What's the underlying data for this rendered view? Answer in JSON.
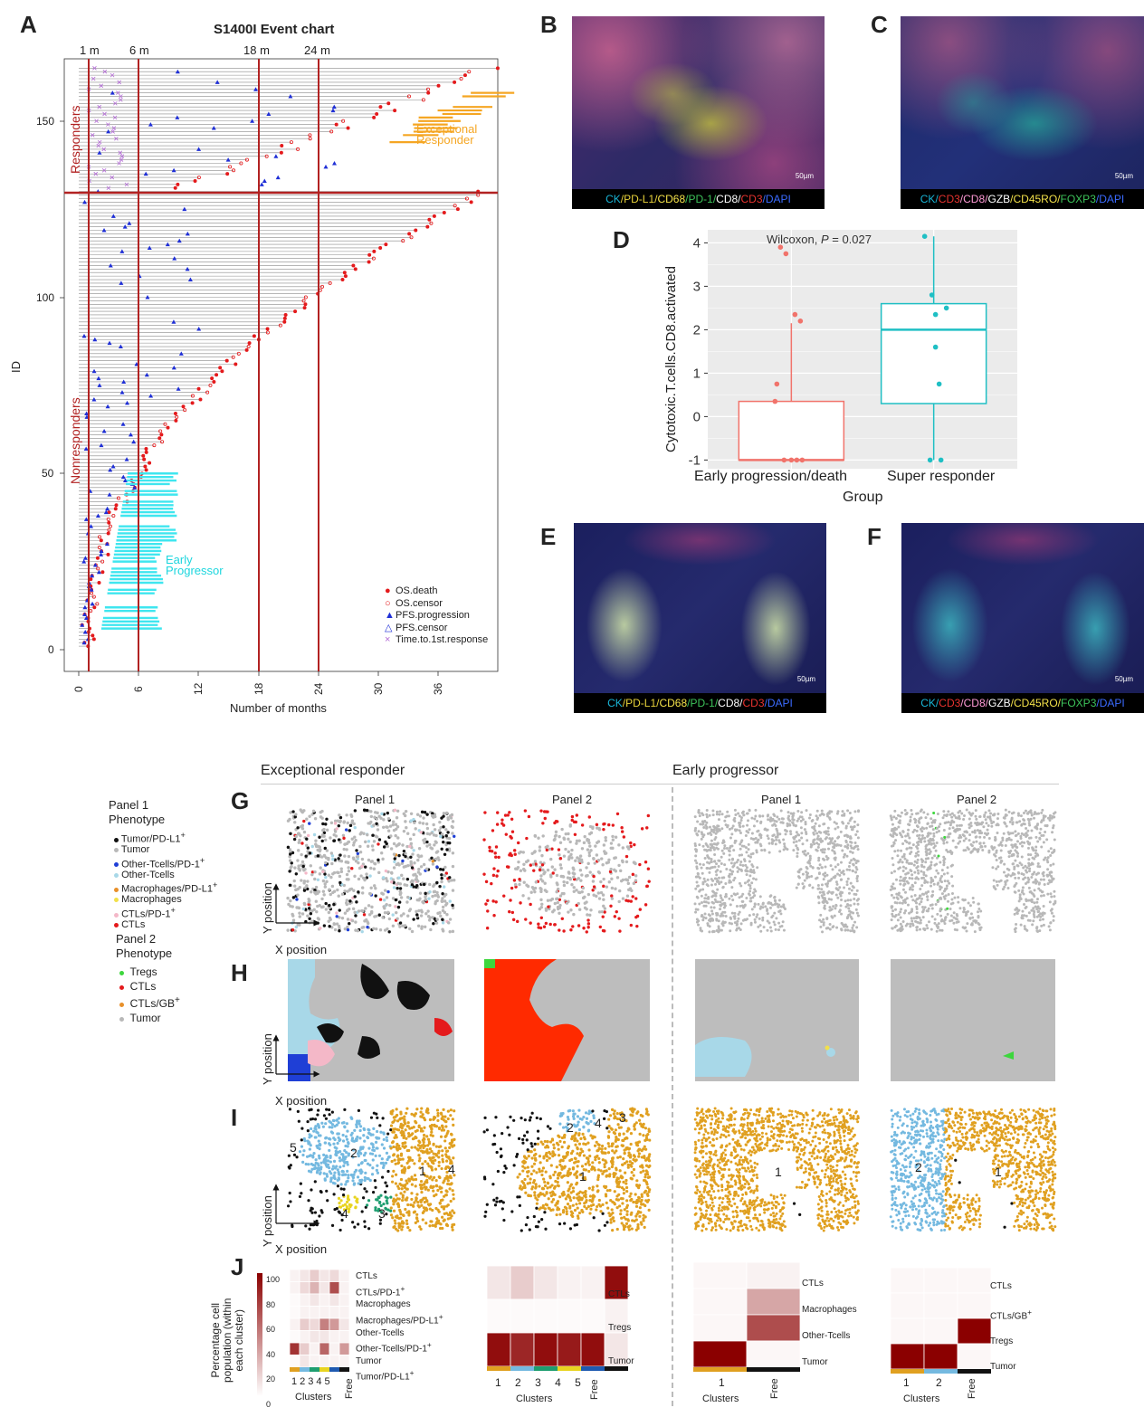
{
  "panel_letters": {
    "A": "A",
    "B": "B",
    "C": "C",
    "D": "D",
    "E": "E",
    "F": "F",
    "G": "G",
    "H": "H",
    "I": "I",
    "J": "J"
  },
  "panelA": {
    "title": "S1400I Event chart",
    "xlabel": "Number of months",
    "ylabel": "ID",
    "vlines": [
      "1 m",
      "6 m",
      "18 m",
      "24 m"
    ],
    "xticks": [
      "0",
      "6",
      "12",
      "18",
      "24",
      "30",
      "36"
    ],
    "yticks": [
      "0",
      "50",
      "100",
      "150"
    ],
    "group_labels": {
      "responders": "Responders",
      "nonresponders": "Nonresponders"
    },
    "annotations": {
      "exceptional_1": "Exceptional",
      "exceptional_2": "Responder",
      "early_1": "Early",
      "early_2": "Progressor"
    },
    "legend": [
      {
        "label": "OS.death",
        "color": "#e41a1c",
        "shape": "dot"
      },
      {
        "label": "OS.censor",
        "color": "#e41a1c",
        "shape": "circle"
      },
      {
        "label": "PFS.progression",
        "color": "#1f2fd6",
        "shape": "triangle"
      },
      {
        "label": "PFS.censor",
        "color": "#1f2fd6",
        "shape": "triangle-open"
      },
      {
        "label": "Time.to.1st.response",
        "color": "#b36bd6",
        "shape": "cross"
      }
    ]
  },
  "panelB": {
    "caption": [
      [
        "CK",
        "#19b5d6"
      ],
      [
        "/PD-L1/",
        "#e8d23a"
      ],
      [
        "CD68",
        "#f4e24a"
      ],
      [
        "/PD-1/",
        "#3dc35a"
      ],
      [
        "CD8/",
        "#ffffff"
      ],
      [
        "CD3",
        "#e8332f"
      ],
      [
        "/DAPI",
        "#3b6bff"
      ]
    ],
    "scalebar": "50µm"
  },
  "panelC": {
    "caption": [
      [
        "CK/",
        "#19b5d6"
      ],
      [
        "CD3",
        "#e8332f"
      ],
      [
        "/CD8/",
        "#ff9ad6"
      ],
      [
        "GZB",
        "#ffffff"
      ],
      [
        "/CD45RO/",
        "#f4e24a"
      ],
      [
        "FOXP3",
        "#3dc35a"
      ],
      [
        "/DAPI",
        "#3b6bff"
      ]
    ],
    "scalebar": "50µm"
  },
  "panelE": {
    "caption": [
      [
        "CK",
        "#19b5d6"
      ],
      [
        "/PD-L1/",
        "#e8d23a"
      ],
      [
        "CD68",
        "#f4e24a"
      ],
      [
        "/PD-1/",
        "#3dc35a"
      ],
      [
        "CD8/",
        "#ffffff"
      ],
      [
        "CD3",
        "#e8332f"
      ],
      [
        "/DAPI",
        "#3b6bff"
      ]
    ],
    "scalebar": "50µm"
  },
  "panelF": {
    "caption": [
      [
        "CK/",
        "#19b5d6"
      ],
      [
        "CD3",
        "#e8332f"
      ],
      [
        "/CD8/",
        "#ff9ad6"
      ],
      [
        "GZB",
        "#ffffff"
      ],
      [
        "/CD45RO/",
        "#f4e24a"
      ],
      [
        "FOXP3",
        "#3dc35a"
      ],
      [
        "/DAPI",
        "#3b6bff"
      ]
    ],
    "scalebar": "50µm"
  },
  "panelD": {
    "annotation": "Wilcoxon, ",
    "annotation_p": "P",
    "annotation_val": " = 0.027",
    "ylabel": "Cytotoxic.T.cells.CD8.activated",
    "xlabel": "Group",
    "yticks": [
      "-1",
      "0",
      "1",
      "2",
      "3",
      "4"
    ]
  },
  "chart_data": {
    "type": "box",
    "title": "",
    "xlabel": "Group",
    "ylabel": "Cytotoxic.T.cells.CD8.activated",
    "ylim": [
      -1.2,
      4.3
    ],
    "categories": [
      "Early progression/death",
      "Super responder"
    ],
    "colors": [
      "#f1736b",
      "#1fbfc4"
    ],
    "boxes": [
      {
        "q1": -1.0,
        "median": -1.0,
        "q3": 0.35,
        "whisker_low": -1.0,
        "whisker_high": 2.15
      },
      {
        "q1": 0.3,
        "median": 2.0,
        "q3": 2.6,
        "whisker_low": -1.0,
        "whisker_high": 4.15
      }
    ],
    "points": [
      [
        3.9,
        3.75,
        2.35,
        2.2,
        0.75,
        0.35,
        -1.0,
        -1.0,
        -1.0,
        -1.0
      ],
      [
        4.15,
        2.8,
        2.5,
        2.35,
        1.6,
        0.75,
        -1.0,
        -1.0
      ]
    ]
  },
  "section_titles": {
    "left": "Exceptional responder",
    "right": "Early progressor"
  },
  "panel_headers": [
    "Panel 1",
    "Panel 2",
    "Panel 1",
    "Panel 2"
  ],
  "axis_names": {
    "x": "X position",
    "y": "Y position"
  },
  "legend_panel1": {
    "title1": "Panel 1",
    "title2": "Phenotype",
    "items": [
      {
        "label": "Tumor/PD-L1",
        "sup": "+",
        "color": "#111111"
      },
      {
        "label": "Tumor",
        "sup": "",
        "color": "#b8b8b8"
      },
      {
        "label": "Other-Tcells/PD-1",
        "sup": "+",
        "color": "#1f3fd6"
      },
      {
        "label": "Other-Tcells",
        "sup": "",
        "color": "#a8d8e8"
      },
      {
        "label": "Macrophages/PD-L1",
        "sup": "+",
        "color": "#e8902a"
      },
      {
        "label": "Macrophages",
        "sup": "",
        "color": "#f2e04a"
      },
      {
        "label": "CTLs/PD-1",
        "sup": "+",
        "color": "#f4b8c8"
      },
      {
        "label": "CTLs",
        "sup": "",
        "color": "#e41a1c"
      }
    ]
  },
  "legend_panel2": {
    "title1": "Panel 2",
    "title2": "Phenotype",
    "items": [
      {
        "label": "Tregs",
        "sup": "",
        "color": "#3dd63d"
      },
      {
        "label": "CTLs",
        "sup": "",
        "color": "#e41a1c"
      },
      {
        "label": "CTLs/GB",
        "sup": "+",
        "color": "#e8902a"
      },
      {
        "label": "Tumor",
        "sup": "",
        "color": "#b8b8b8"
      }
    ]
  },
  "cluster_numbers": {
    "er_p1": [
      "5",
      "2",
      "1",
      "4",
      "4",
      "3"
    ],
    "er_p2": [
      "2",
      "4",
      "3",
      "1"
    ],
    "ep_p1": [
      "1"
    ],
    "ep_p2": [
      "2",
      "1"
    ]
  },
  "panelJ": {
    "ylabel1": "Percentage cell",
    "ylabel2": "population (within",
    "ylabel3": "each cluster)",
    "scale": [
      "100",
      "80",
      "60",
      "40",
      "20",
      "0"
    ],
    "xlabel": "Clusters",
    "free": "Free",
    "hm1_rows": [
      {
        "label": "CTLs",
        "sup": ""
      },
      {
        "label": "CTLs/PD-1",
        "sup": "+"
      },
      {
        "label": "Macrophages",
        "sup": ""
      },
      {
        "label": "Macrophages/PD-L1",
        "sup": "+"
      },
      {
        "label": "Other-Tcells",
        "sup": ""
      },
      {
        "label": "Other-Tcells/PD-1",
        "sup": "+"
      },
      {
        "label": "Tumor",
        "sup": ""
      },
      {
        "label": "Tumor/PD-L1",
        "sup": "+"
      }
    ],
    "hm1_cols": [
      "1",
      "2",
      "3",
      "4",
      "5"
    ],
    "hm1_values": [
      [
        5,
        10,
        20,
        10,
        15,
        5
      ],
      [
        5,
        15,
        30,
        10,
        70,
        5
      ],
      [
        2,
        5,
        10,
        5,
        10,
        5
      ],
      [
        2,
        5,
        5,
        5,
        5,
        5
      ],
      [
        5,
        20,
        15,
        50,
        40,
        10
      ],
      [
        2,
        5,
        10,
        10,
        5,
        5
      ],
      [
        80,
        20,
        5,
        60,
        5,
        40
      ],
      [
        2,
        10,
        5,
        5,
        5,
        5
      ]
    ],
    "hm2_rows": [
      {
        "label": "CTLs",
        "sup": ""
      },
      {
        "label": "Tregs",
        "sup": ""
      },
      {
        "label": "Tumor",
        "sup": ""
      }
    ],
    "hm2_cols": [
      "1",
      "2",
      "3",
      "4",
      "5"
    ],
    "hm2_values": [
      [
        10,
        20,
        10,
        5,
        5,
        95
      ],
      [
        2,
        2,
        2,
        2,
        2,
        5
      ],
      [
        95,
        85,
        95,
        90,
        95,
        10
      ]
    ],
    "hm3_rows": [
      {
        "label": "CTLs",
        "sup": ""
      },
      {
        "label": "Macrophages",
        "sup": ""
      },
      {
        "label": "Other-Tcells",
        "sup": ""
      },
      {
        "label": "Tumor",
        "sup": ""
      }
    ],
    "hm3_cols": [
      "1"
    ],
    "hm3_values": [
      [
        3,
        5
      ],
      [
        3,
        35
      ],
      [
        3,
        70
      ],
      [
        100,
        3
      ]
    ],
    "hm4_rows": [
      {
        "label": "CTLs",
        "sup": ""
      },
      {
        "label": "CTLs/GB",
        "sup": "+"
      },
      {
        "label": "Tregs",
        "sup": ""
      },
      {
        "label": "Tumor",
        "sup": ""
      }
    ],
    "hm4_cols": [
      "1",
      "2"
    ],
    "hm4_values": [
      [
        3,
        3,
        3
      ],
      [
        3,
        3,
        3
      ],
      [
        3,
        3,
        100
      ],
      [
        100,
        100,
        3
      ]
    ]
  }
}
